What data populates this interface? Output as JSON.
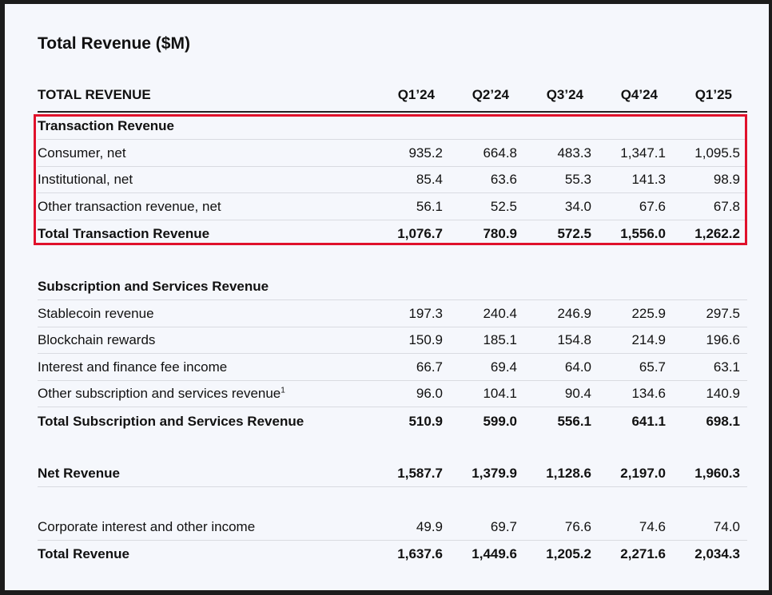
{
  "title": "Total Revenue ($M)",
  "header": {
    "label": "TOTAL REVENUE",
    "quarters": [
      "Q1’24",
      "Q2’24",
      "Q3’24",
      "Q4’24",
      "Q1’25"
    ]
  },
  "transaction": {
    "heading": "Transaction Revenue",
    "rows": [
      {
        "label": "Consumer, net",
        "values": [
          "935.2",
          "664.8",
          "483.3",
          "1,347.1",
          "1,095.5"
        ]
      },
      {
        "label": "Institutional, net",
        "values": [
          "85.4",
          "63.6",
          "55.3",
          "141.3",
          "98.9"
        ]
      },
      {
        "label": "Other transaction revenue, net",
        "values": [
          "56.1",
          "52.5",
          "34.0",
          "67.6",
          "67.8"
        ]
      }
    ],
    "total": {
      "label": "Total Transaction Revenue",
      "values": [
        "1,076.7",
        "780.9",
        "572.5",
        "1,556.0",
        "1,262.2"
      ]
    }
  },
  "subscription": {
    "heading": "Subscription and Services Revenue",
    "rows": [
      {
        "label": "Stablecoin revenue",
        "values": [
          "197.3",
          "240.4",
          "246.9",
          "225.9",
          "297.5"
        ]
      },
      {
        "label": "Blockchain rewards",
        "values": [
          "150.9",
          "185.1",
          "154.8",
          "214.9",
          "196.6"
        ]
      },
      {
        "label": "Interest and finance fee income",
        "values": [
          "66.7",
          "69.4",
          "64.0",
          "65.7",
          "63.1"
        ]
      },
      {
        "label": "Other subscription and services revenue",
        "footnote": "1",
        "values": [
          "96.0",
          "104.1",
          "90.4",
          "134.6",
          "140.9"
        ]
      }
    ],
    "total": {
      "label": "Total Subscription and Services Revenue",
      "values": [
        "510.9",
        "599.0",
        "556.1",
        "641.1",
        "698.1"
      ]
    }
  },
  "net_revenue": {
    "label": "Net Revenue",
    "values": [
      "1,587.7",
      "1,379.9",
      "1,128.6",
      "2,197.0",
      "1,960.3"
    ]
  },
  "corporate": {
    "label": "Corporate interest and other income",
    "values": [
      "49.9",
      "69.7",
      "76.6",
      "74.6",
      "74.0"
    ]
  },
  "total_revenue": {
    "label": "Total Revenue",
    "values": [
      "1,637.6",
      "1,449.6",
      "1,205.2",
      "2,271.6",
      "2,034.3"
    ]
  },
  "highlight_color": "#e0112b"
}
